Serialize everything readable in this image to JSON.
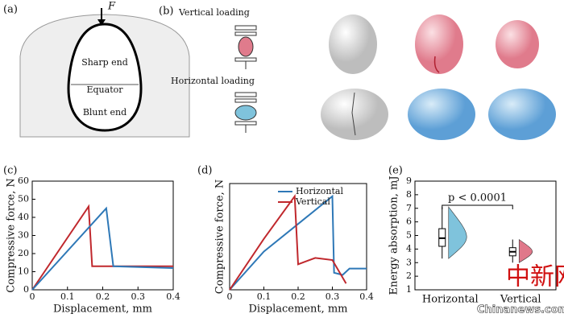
{
  "figure": {
    "panel_a": {
      "label": "(a)",
      "force": "F",
      "sharp": "Sharp end",
      "equator": "Equator",
      "blunt": "Blunt end"
    },
    "panel_b": {
      "label": "(b)",
      "vertical": "Vertical loading",
      "horizontal": "Horizontal loading"
    },
    "panel_c": {
      "label": "(c)"
    },
    "panel_d": {
      "label": "(d)"
    },
    "panel_e": {
      "label": "(e)"
    },
    "watermark": {
      "cn": "中新网",
      "en": "Chinanews.com"
    }
  },
  "chart_data": [
    {
      "type": "line",
      "xlabel": "Displacement, mm",
      "ylabel": "Compressive force, N",
      "xlim": [
        0,
        0.4
      ],
      "ylim": [
        0,
        60
      ],
      "xticks": [
        0,
        0.1,
        0.2,
        0.3,
        0.4
      ],
      "yticks": [
        0,
        10,
        20,
        30,
        40,
        50,
        60
      ],
      "series": [
        {
          "color": "#c0282d",
          "x": [
            0,
            0.16,
            0.17,
            0.4
          ],
          "values": [
            0,
            46,
            13,
            13
          ]
        },
        {
          "color": "#2e78b7",
          "x": [
            0,
            0.21,
            0.23,
            0.4
          ],
          "values": [
            0,
            45,
            13,
            12
          ]
        }
      ]
    },
    {
      "type": "line",
      "xlabel": "Displacement, mm",
      "ylabel": "Compressive force, N",
      "xlim": [
        0,
        0.4
      ],
      "ylim": [
        0,
        50
      ],
      "xticks": [
        0,
        0.1,
        0.2,
        0.3,
        0.4
      ],
      "legend": "upper-left",
      "series": [
        {
          "name": "Horizontal",
          "color": "#2e78b7",
          "x": [
            0,
            0.1,
            0.2,
            0.3,
            0.305,
            0.33,
            0.35,
            0.4
          ],
          "values": [
            0,
            18,
            31,
            44,
            8,
            7,
            10,
            10
          ]
        },
        {
          "name": "Vertical",
          "color": "#c0282d",
          "x": [
            0,
            0.1,
            0.19,
            0.2,
            0.25,
            0.3,
            0.34
          ],
          "values": [
            0,
            24,
            44,
            12,
            15,
            14,
            3
          ]
        }
      ]
    },
    {
      "type": "box",
      "ylabel": "Energy absorption, mJ",
      "ylim": [
        1,
        9
      ],
      "yticks": [
        1,
        2,
        3,
        4,
        5,
        6,
        7,
        8,
        9
      ],
      "categories": [
        "Horizontal",
        "Vertical"
      ],
      "colors": [
        "#7fc3dc",
        "#e0788a"
      ],
      "annotation": "p < 0.0001",
      "boxes": [
        {
          "min": 3.3,
          "q1": 4.2,
          "median": 4.8,
          "q3": 5.5,
          "max": 7.1
        },
        {
          "min": 3.0,
          "q1": 3.5,
          "median": 3.8,
          "q3": 4.1,
          "max": 4.7
        }
      ]
    }
  ]
}
